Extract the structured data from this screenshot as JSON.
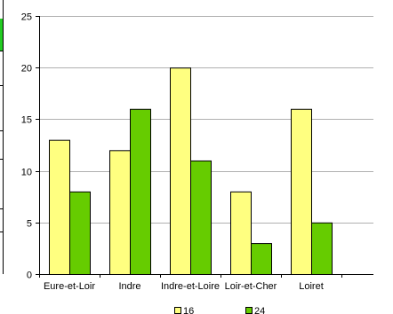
{
  "chart_data": {
    "type": "bar",
    "categories": [
      "Eure-et-Loir",
      "Indre",
      "Indre-et-Loire",
      "Loir-et-Cher",
      "Loiret"
    ],
    "series": [
      {
        "name": "16",
        "values": [
          13,
          12,
          20,
          8,
          16
        ],
        "color": "#ffff80"
      },
      {
        "name": "24",
        "values": [
          8,
          16,
          11,
          3,
          5
        ],
        "color": "#66cc00"
      }
    ],
    "ylim": [
      0,
      25
    ],
    "yticks": [
      "0",
      "5",
      "10",
      "15",
      "20",
      "25"
    ],
    "grid": true,
    "legend_position": "bottom"
  }
}
